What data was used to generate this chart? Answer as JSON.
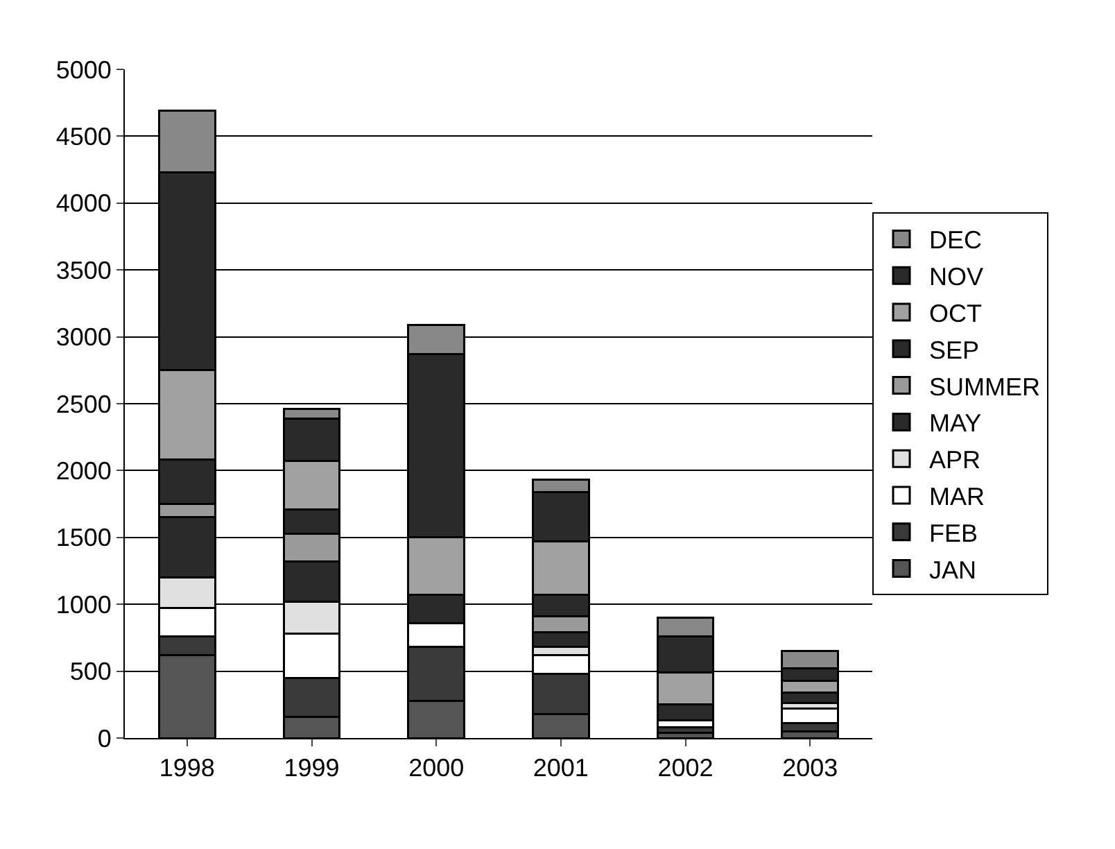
{
  "chart_data": {
    "type": "bar",
    "stacked": true,
    "categories": [
      "1998",
      "1999",
      "2000",
      "2001",
      "2002",
      "2003"
    ],
    "series": [
      {
        "name": "JAN",
        "color": "#555555",
        "values": [
          620,
          160,
          280,
          180,
          40,
          50
        ]
      },
      {
        "name": "FEB",
        "color": "#3a3a3a",
        "values": [
          140,
          290,
          400,
          300,
          40,
          60
        ]
      },
      {
        "name": "MAR",
        "color": "#ffffff",
        "values": [
          210,
          330,
          180,
          140,
          50,
          110
        ]
      },
      {
        "name": "APR",
        "color": "#e0e0e0",
        "values": [
          230,
          240,
          null,
          60,
          null,
          40
        ]
      },
      {
        "name": "MAY",
        "color": "#2a2a2a",
        "values": [
          450,
          300,
          null,
          110,
          null,
          null
        ]
      },
      {
        "name": "SUMMER",
        "color": "#9a9a9a",
        "values": [
          100,
          210,
          null,
          120,
          null,
          null
        ]
      },
      {
        "name": "SEP",
        "color": "#2a2a2a",
        "values": [
          330,
          180,
          210,
          160,
          120,
          80
        ]
      },
      {
        "name": "OCT",
        "color": "#a0a0a0",
        "values": [
          670,
          360,
          430,
          400,
          240,
          90
        ]
      },
      {
        "name": "NOV",
        "color": "#2a2a2a",
        "values": [
          1480,
          320,
          1370,
          370,
          270,
          90
        ]
      },
      {
        "name": "DEC",
        "color": "#888888",
        "values": [
          460,
          70,
          220,
          90,
          140,
          130
        ]
      }
    ],
    "ylim": [
      0,
      5000
    ],
    "yticks": [
      0,
      500,
      1000,
      1500,
      2000,
      2500,
      3000,
      3500,
      4000,
      4500,
      5000
    ],
    "grid": "y",
    "legend": "right"
  }
}
